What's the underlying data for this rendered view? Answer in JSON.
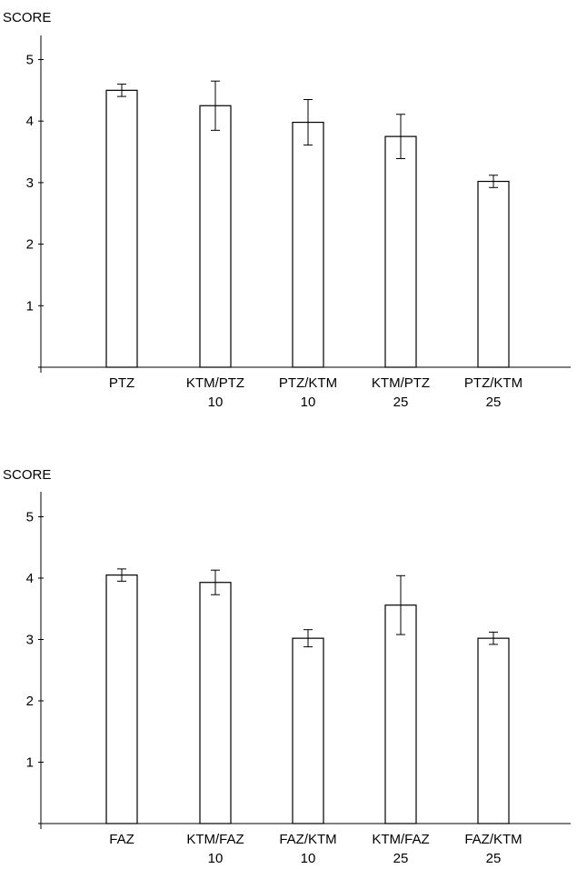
{
  "chart_data": [
    {
      "type": "bar",
      "ylabel": "SCORE",
      "xlabel": "",
      "ylim": [
        0,
        5.5
      ],
      "yticks": [
        1,
        2,
        3,
        4,
        5
      ],
      "grid": false,
      "categories": [
        [
          "PTZ"
        ],
        [
          "KTM/PTZ",
          "10"
        ],
        [
          "PTZ/KTM",
          "10"
        ],
        [
          "KTM/PTZ",
          "25"
        ],
        [
          "PTZ/KTM",
          "25"
        ]
      ],
      "values": [
        4.5,
        4.25,
        3.98,
        3.75,
        3.02
      ],
      "error": [
        0.1,
        0.4,
        0.37,
        0.36,
        0.1
      ]
    },
    {
      "type": "bar",
      "ylabel": "SCORE",
      "xlabel": "",
      "ylim": [
        0,
        5.5
      ],
      "yticks": [
        1,
        2,
        3,
        4,
        5
      ],
      "grid": false,
      "categories": [
        [
          "FAZ"
        ],
        [
          "KTM/FAZ",
          "10"
        ],
        [
          "FAZ/KTM",
          "10"
        ],
        [
          "KTM/FAZ",
          "25"
        ],
        [
          "FAZ/KTM",
          "25"
        ]
      ],
      "values": [
        4.05,
        3.93,
        3.02,
        3.56,
        3.02
      ],
      "error": [
        0.1,
        0.2,
        0.14,
        0.48,
        0.1
      ]
    }
  ]
}
